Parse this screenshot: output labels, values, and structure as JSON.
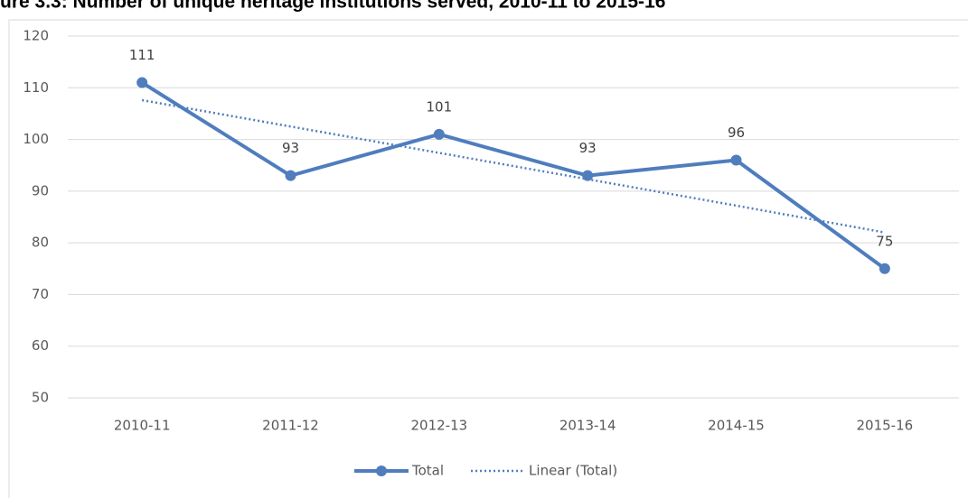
{
  "chart_data": {
    "type": "line",
    "title": "ure 3.3: Number of unique heritage institutions served, 2010-11 to 2015-16",
    "categories": [
      "2010-11",
      "2011-12",
      "2012-13",
      "2013-14",
      "2014-15",
      "2015-16"
    ],
    "series": [
      {
        "name": "Total",
        "color": "#4f7dbd",
        "values": [
          111,
          93,
          101,
          93,
          96,
          75
        ],
        "style": "solid",
        "markers": true,
        "data_labels": true
      },
      {
        "name": "Linear (Total)",
        "color": "#4f7dbd",
        "values": [
          107.6,
          102.5,
          97.4,
          92.3,
          87.2,
          82.0
        ],
        "style": "dotted",
        "markers": false,
        "data_labels": false
      }
    ],
    "ylim": [
      50,
      120
    ],
    "yticks": [
      50,
      60,
      70,
      80,
      90,
      100,
      110,
      120
    ],
    "grid": true,
    "legend": "bottom"
  }
}
